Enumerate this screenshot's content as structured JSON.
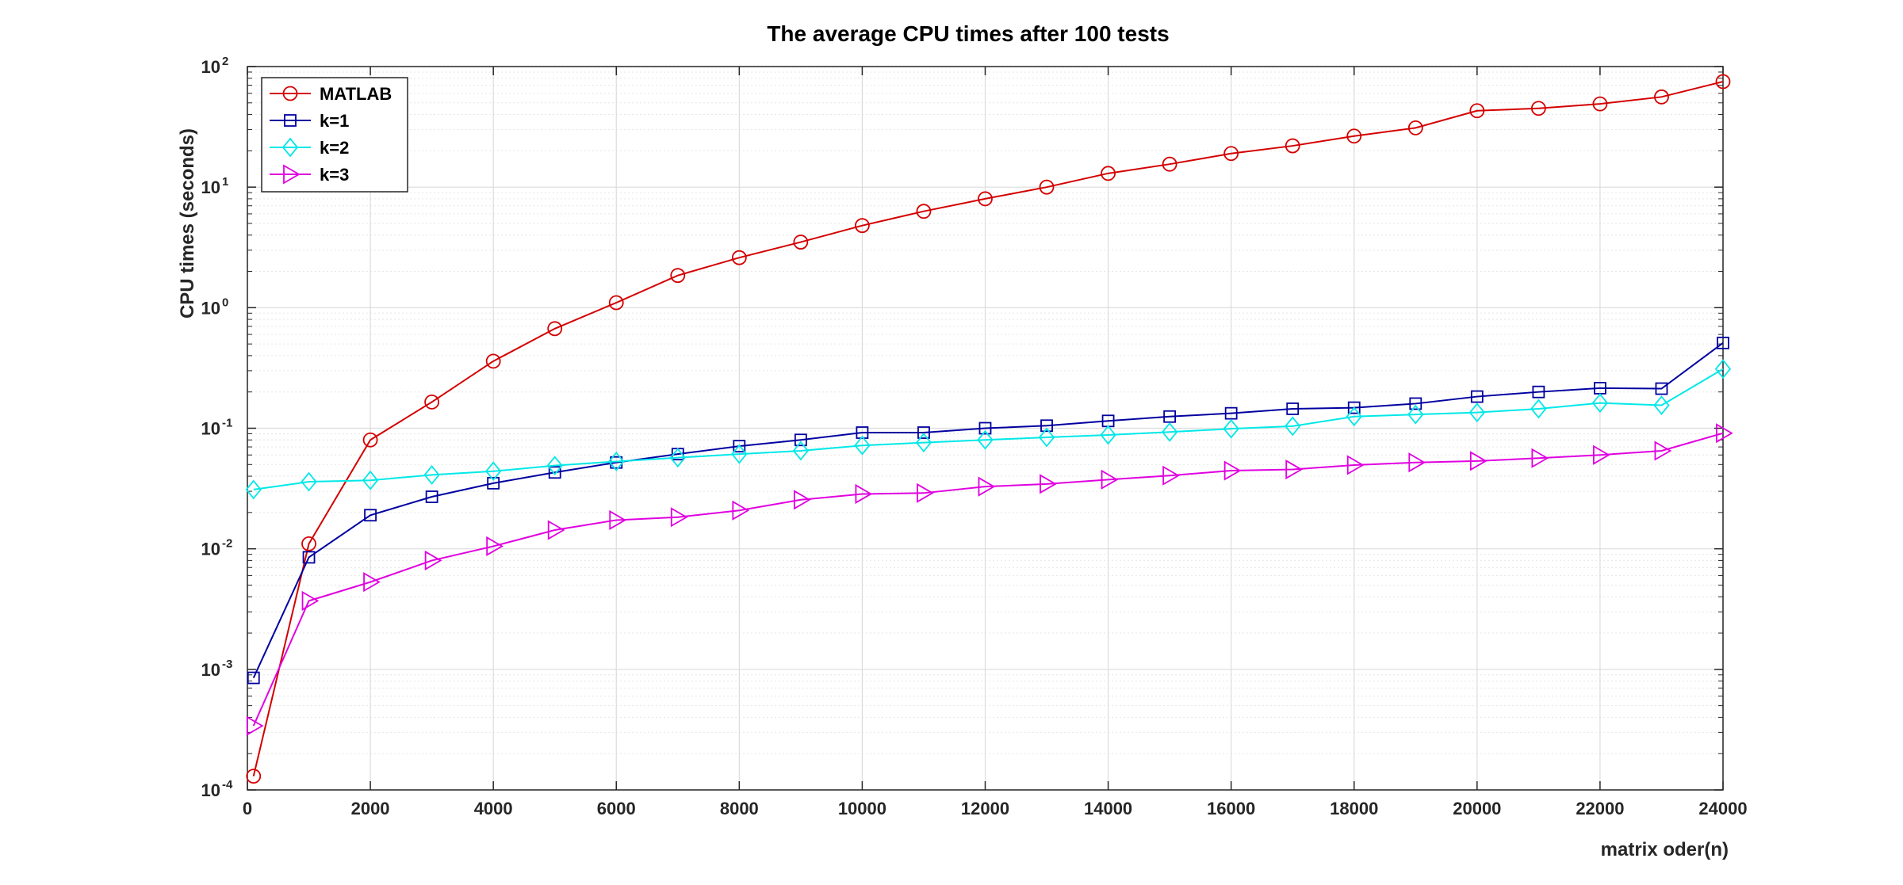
{
  "chart_data": {
    "type": "line",
    "title": "The average CPU times after 100 tests",
    "xlabel": "matrix oder(n)",
    "ylabel": "CPU times (seconds)",
    "xlim": [
      0,
      24000
    ],
    "ylim": [
      0.0001,
      100
    ],
    "yscale": "log",
    "grid": true,
    "minor_grid": true,
    "legend_position": "top-left",
    "xticks": [
      0,
      2000,
      4000,
      6000,
      8000,
      10000,
      12000,
      14000,
      16000,
      18000,
      20000,
      22000,
      24000
    ],
    "yticks": [
      {
        "base": "10",
        "exp": "-4",
        "value": 0.0001
      },
      {
        "base": "10",
        "exp": "-3",
        "value": 0.001
      },
      {
        "base": "10",
        "exp": "-2",
        "value": 0.01
      },
      {
        "base": "10",
        "exp": "-1",
        "value": 0.1
      },
      {
        "base": "10",
        "exp": "0",
        "value": 1
      },
      {
        "base": "10",
        "exp": "1",
        "value": 10
      },
      {
        "base": "10",
        "exp": "2",
        "value": 100
      }
    ],
    "x": [
      100,
      1000,
      2000,
      3000,
      4000,
      5000,
      6000,
      7000,
      8000,
      9000,
      10000,
      11000,
      12000,
      13000,
      14000,
      15000,
      16000,
      17000,
      18000,
      19000,
      20000,
      21000,
      22000,
      23000,
      24000
    ],
    "series": [
      {
        "name": "MATLAB",
        "color": "#d40000",
        "marker": "circle",
        "values": [
          0.00013,
          0.011,
          0.08,
          0.165,
          0.36,
          0.67,
          1.1,
          1.85,
          2.6,
          3.5,
          4.8,
          6.3,
          8.0,
          10.0,
          13.0,
          15.5,
          19.0,
          22.0,
          26.5,
          31.0,
          43.0,
          45.0,
          49.0,
          56.0,
          75.0
        ]
      },
      {
        "name": "k=1",
        "color": "#0000a0",
        "marker": "square",
        "values": [
          0.00085,
          0.0085,
          0.019,
          0.027,
          0.035,
          0.043,
          0.052,
          0.061,
          0.071,
          0.08,
          0.092,
          0.092,
          0.1,
          0.105,
          0.115,
          0.125,
          0.133,
          0.145,
          0.148,
          0.16,
          0.183,
          0.2,
          0.215,
          0.213,
          0.51
        ]
      },
      {
        "name": "k=2",
        "color": "#00e8e8",
        "marker": "diamond",
        "values": [
          0.031,
          0.036,
          0.037,
          0.041,
          0.044,
          0.049,
          0.053,
          0.057,
          0.061,
          0.065,
          0.072,
          0.076,
          0.08,
          0.084,
          0.088,
          0.093,
          0.099,
          0.104,
          0.125,
          0.13,
          0.135,
          0.145,
          0.162,
          0.155,
          0.31
        ]
      },
      {
        "name": "k=3",
        "color": "#e000e0",
        "marker": "triangle-right",
        "values": [
          0.00034,
          0.0037,
          0.0053,
          0.008,
          0.0105,
          0.0143,
          0.0173,
          0.0183,
          0.0208,
          0.0255,
          0.0285,
          0.029,
          0.0328,
          0.0345,
          0.0375,
          0.0405,
          0.0445,
          0.0455,
          0.0495,
          0.052,
          0.0535,
          0.0565,
          0.06,
          0.065,
          0.091
        ]
      }
    ]
  }
}
